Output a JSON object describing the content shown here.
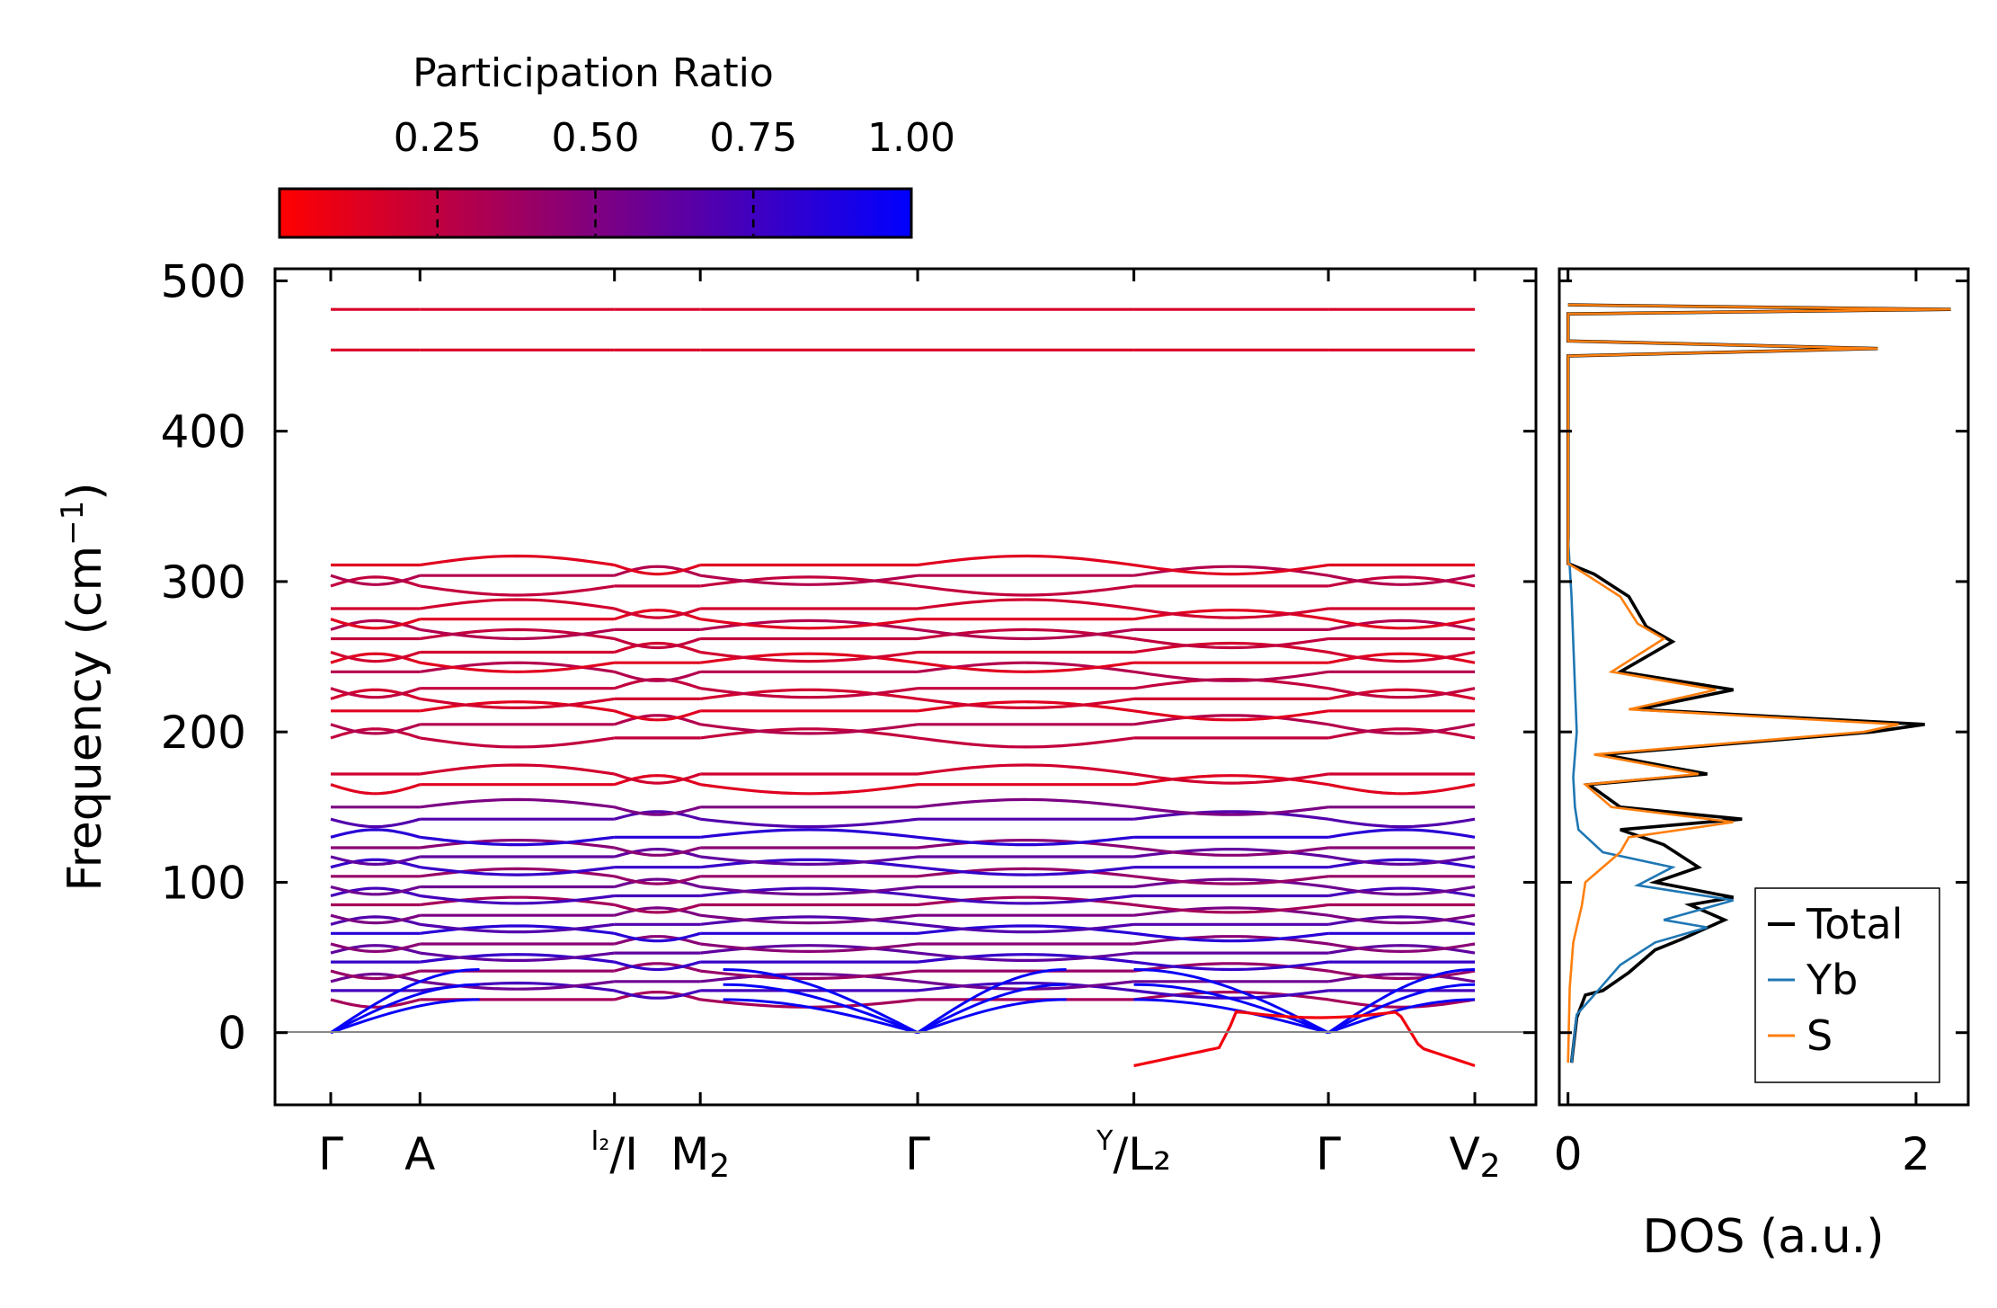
{
  "chart_data": [
    {
      "type": "line",
      "panel": "band-structure",
      "ylabel": "Frequency (cm",
      "ylabel_sup": "−1",
      "ylabel_close": ")",
      "ylim": [
        -48,
        508
      ],
      "yticks": [
        0,
        100,
        200,
        300,
        400,
        500
      ],
      "ytick_labels": [
        "0",
        "100",
        "200",
        "300",
        "400",
        "500"
      ],
      "kpath": [
        {
          "label": "Γ",
          "sub": "",
          "pre": "",
          "pos": 0.0
        },
        {
          "label": "A",
          "sub": "",
          "pre": "",
          "pos": 0.078
        },
        {
          "label": "/I",
          "sub": "",
          "pre": "I₂",
          "pos": 0.248
        },
        {
          "label": "M",
          "sub": "2",
          "pre": "",
          "pos": 0.323
        },
        {
          "label": "Γ",
          "sub": "",
          "pre": "",
          "pos": 0.513
        },
        {
          "label": "/L₂",
          "sub": "",
          "pre": "Y",
          "pos": 0.702
        },
        {
          "label": "Γ",
          "sub": "",
          "pre": "",
          "pos": 0.872
        },
        {
          "label": "V",
          "sub": "2",
          "pre": "",
          "pos": 1.0
        }
      ],
      "bands_high": [
        454,
        481
      ],
      "bands_optic": [
        165,
        172,
        196,
        205,
        214,
        222,
        229,
        240,
        246,
        253,
        262,
        268,
        275,
        282,
        297,
        304,
        311
      ],
      "bands_mid": [
        22,
        28,
        34,
        41,
        47,
        53,
        59,
        66,
        72,
        78,
        85,
        91,
        97,
        104,
        110,
        117,
        123,
        130,
        142,
        150
      ],
      "acoustic_gamma_points": [
        0.0,
        0.513,
        0.872
      ],
      "imaginary_mode_min": -22
    },
    {
      "type": "line",
      "panel": "dos",
      "xlabel": "DOS (a.u.)",
      "xlim": [
        -0.05,
        2.3
      ],
      "xticks": [
        0,
        2
      ],
      "xtick_labels": [
        "0",
        "2"
      ],
      "ylim": [
        -48,
        508
      ],
      "series": [
        {
          "name": "Total",
          "color": "#000000",
          "points": [
            [
              0.02,
              -20
            ],
            [
              0.05,
              10
            ],
            [
              0.1,
              25
            ],
            [
              0.2,
              28
            ],
            [
              0.35,
              40
            ],
            [
              0.5,
              55
            ],
            [
              0.65,
              62
            ],
            [
              0.9,
              75
            ],
            [
              0.7,
              85
            ],
            [
              0.95,
              90
            ],
            [
              0.5,
              100
            ],
            [
              0.75,
              110
            ],
            [
              0.55,
              125
            ],
            [
              0.3,
              135
            ],
            [
              1.0,
              142
            ],
            [
              0.3,
              150
            ],
            [
              0.12,
              165
            ],
            [
              0.8,
              172
            ],
            [
              0.2,
              185
            ],
            [
              1.75,
              200
            ],
            [
              2.05,
              205
            ],
            [
              0.4,
              215
            ],
            [
              0.95,
              228
            ],
            [
              0.3,
              240
            ],
            [
              0.6,
              260
            ],
            [
              0.45,
              270
            ],
            [
              0.35,
              290
            ],
            [
              0.15,
              305
            ],
            [
              0.0,
              312
            ],
            [
              0.0,
              450
            ],
            [
              1.78,
              455
            ],
            [
              0.0,
              460
            ],
            [
              0.0,
              478
            ],
            [
              2.2,
              481
            ],
            [
              0.0,
              484
            ]
          ]
        },
        {
          "name": "Yb",
          "color": "#1f77b4",
          "points": [
            [
              0.02,
              -20
            ],
            [
              0.05,
              12
            ],
            [
              0.15,
              25
            ],
            [
              0.3,
              45
            ],
            [
              0.5,
              60
            ],
            [
              0.8,
              70
            ],
            [
              0.55,
              75
            ],
            [
              0.95,
              88
            ],
            [
              0.4,
              98
            ],
            [
              0.6,
              110
            ],
            [
              0.2,
              120
            ],
            [
              0.06,
              135
            ],
            [
              0.04,
              150
            ],
            [
              0.03,
              170
            ],
            [
              0.05,
              200
            ],
            [
              0.04,
              230
            ],
            [
              0.03,
              260
            ],
            [
              0.02,
              290
            ],
            [
              0.01,
              310
            ],
            [
              0.0,
              330
            ]
          ]
        },
        {
          "name": "S",
          "color": "#ff7f0e",
          "points": [
            [
              0.0,
              -20
            ],
            [
              0.01,
              30
            ],
            [
              0.03,
              60
            ],
            [
              0.08,
              85
            ],
            [
              0.1,
              100
            ],
            [
              0.3,
              120
            ],
            [
              0.35,
              130
            ],
            [
              0.95,
              140
            ],
            [
              0.25,
              150
            ],
            [
              0.1,
              165
            ],
            [
              0.75,
              172
            ],
            [
              0.15,
              185
            ],
            [
              1.7,
              200
            ],
            [
              1.9,
              205
            ],
            [
              0.35,
              215
            ],
            [
              0.85,
              228
            ],
            [
              0.25,
              240
            ],
            [
              0.55,
              262
            ],
            [
              0.4,
              272
            ],
            [
              0.3,
              290
            ],
            [
              0.1,
              305
            ],
            [
              0.0,
              312
            ],
            [
              0.0,
              450
            ],
            [
              1.78,
              455
            ],
            [
              0.0,
              460
            ],
            [
              0.0,
              478
            ],
            [
              2.2,
              481
            ],
            [
              0.0,
              484
            ]
          ]
        }
      ],
      "legend": [
        "Total",
        "Yb",
        "S"
      ],
      "legend_position": "lower-right"
    }
  ],
  "colorbar": {
    "title": "Participation Ratio",
    "ticks": [
      "0.25",
      "0.50",
      "0.75",
      "1.00"
    ],
    "tick_values": [
      0.25,
      0.5,
      0.75,
      1.0
    ],
    "range": [
      0.0,
      1.0
    ],
    "color_low": "#ff0000",
    "color_high": "#0000ff"
  }
}
